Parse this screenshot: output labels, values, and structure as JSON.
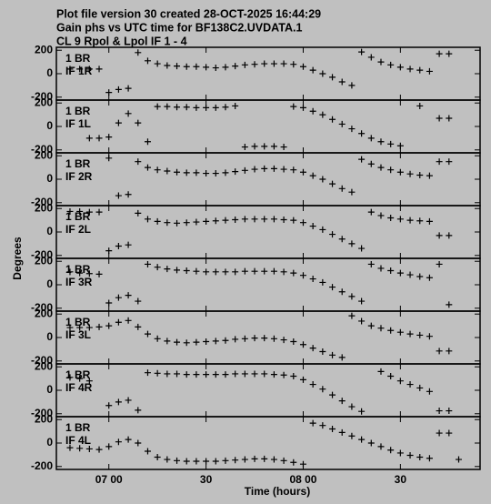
{
  "chart_data": {
    "type": "scatter",
    "title": [
      "Plot file version 30  created 28-OCT-2025 16:44:29",
      "Gain phs vs UTC time for BF138C2.UVDATA.1",
      "CL 9  Rpol & Lpol  IF 1 - 4"
    ],
    "x_label": "Time (hours)",
    "y_label": "Degrees",
    "xlim": [
      6.73,
      8.91
    ],
    "xticks": [
      {
        "value": 7.0,
        "label": "07 00"
      },
      {
        "value": 7.5,
        "label": "30"
      },
      {
        "value": 8.0,
        "label": "08 00"
      },
      {
        "value": 8.5,
        "label": "30"
      }
    ],
    "ylim": [
      -225,
      225
    ],
    "yticks": [
      200,
      0,
      -200
    ],
    "x": [
      6.8,
      6.85,
      6.9,
      6.95,
      7.0,
      7.05,
      7.1,
      7.15,
      7.2,
      7.25,
      7.3,
      7.35,
      7.4,
      7.45,
      7.5,
      7.55,
      7.6,
      7.65,
      7.7,
      7.75,
      7.8,
      7.85,
      7.9,
      7.95,
      8.0,
      8.05,
      8.1,
      8.15,
      8.2,
      8.25,
      8.3,
      8.35,
      8.4,
      8.45,
      8.5,
      8.55,
      8.6,
      8.65,
      8.7,
      8.75,
      8.8
    ],
    "panels": [
      {
        "labels": [
          "1 BR",
          "IF 1R"
        ],
        "values": [
          40,
          40,
          40,
          40,
          -160,
          -135,
          -125,
          180,
          110,
          85,
          70,
          65,
          60,
          60,
          55,
          50,
          55,
          65,
          75,
          80,
          85,
          85,
          85,
          80,
          60,
          30,
          0,
          -30,
          -70,
          -100,
          185,
          140,
          100,
          75,
          55,
          40,
          30,
          20,
          170,
          170,
          null
        ]
      },
      {
        "labels": [
          "1 BR",
          "IF 1L"
        ],
        "values": [
          null,
          null,
          -100,
          -100,
          -90,
          30,
          110,
          30,
          -130,
          170,
          170,
          165,
          165,
          160,
          160,
          160,
          165,
          175,
          -175,
          -170,
          -170,
          -170,
          -175,
          170,
          160,
          130,
          100,
          60,
          20,
          -20,
          -60,
          -100,
          -130,
          -150,
          -165,
          null,
          175,
          null,
          70,
          70,
          null
        ]
      },
      {
        "labels": [
          "1 BR",
          "IF 2R"
        ],
        "values": [
          null,
          null,
          null,
          null,
          180,
          -140,
          -130,
          150,
          100,
          80,
          70,
          60,
          55,
          55,
          50,
          50,
          55,
          65,
          75,
          85,
          90,
          90,
          85,
          80,
          60,
          30,
          0,
          -40,
          -80,
          -110,
          170,
          130,
          100,
          80,
          60,
          45,
          35,
          30,
          150,
          150,
          null
        ]
      },
      {
        "labels": [
          "1 BR",
          "IF 2L"
        ],
        "values": [
          175,
          175,
          170,
          170,
          -160,
          -120,
          -110,
          160,
          110,
          90,
          80,
          75,
          80,
          85,
          90,
          95,
          100,
          105,
          110,
          110,
          110,
          110,
          105,
          100,
          80,
          50,
          20,
          -20,
          -60,
          -100,
          -140,
          170,
          140,
          120,
          110,
          100,
          95,
          90,
          -30,
          -30,
          null
        ]
      },
      {
        "labels": [
          "1 BR",
          "IF 3R"
        ],
        "values": [
          110,
          100,
          95,
          90,
          -155,
          -110,
          -90,
          -140,
          175,
          150,
          135,
          125,
          120,
          115,
          110,
          110,
          110,
          110,
          115,
          115,
          115,
          115,
          110,
          100,
          80,
          50,
          20,
          -20,
          -60,
          -100,
          -140,
          175,
          140,
          120,
          100,
          85,
          70,
          60,
          175,
          -170,
          null
        ]
      },
      {
        "labels": [
          "1 BR",
          "IF 3L"
        ],
        "values": [
          85,
          85,
          85,
          90,
          100,
          130,
          145,
          90,
          30,
          -10,
          -30,
          -40,
          -45,
          -40,
          -35,
          -30,
          -25,
          -15,
          -10,
          -5,
          -5,
          -10,
          -20,
          -35,
          -60,
          -90,
          -120,
          -150,
          -170,
          185,
          140,
          100,
          80,
          60,
          45,
          30,
          20,
          10,
          -115,
          -115,
          null
        ]
      },
      {
        "labels": [
          "1 BR",
          "IF 4R"
        ],
        "values": [
          110,
          100,
          80,
          null,
          -130,
          -100,
          -85,
          -170,
          150,
          145,
          140,
          140,
          135,
          135,
          135,
          135,
          135,
          140,
          140,
          140,
          140,
          135,
          130,
          120,
          90,
          50,
          10,
          -40,
          -90,
          -140,
          -180,
          null,
          160,
          120,
          80,
          50,
          20,
          -10,
          -175,
          -175,
          null
        ]
      },
      {
        "labels": [
          "1 BR",
          "IF 4L"
        ],
        "values": [
          -40,
          -45,
          -50,
          -55,
          -30,
          10,
          30,
          0,
          -70,
          -120,
          -140,
          -150,
          -155,
          -155,
          -155,
          -155,
          -150,
          -145,
          -140,
          -135,
          -135,
          -140,
          -150,
          -165,
          -180,
          170,
          150,
          120,
          90,
          60,
          30,
          0,
          -30,
          -60,
          -85,
          -105,
          -120,
          -130,
          85,
          85,
          -140
        ]
      }
    ]
  }
}
